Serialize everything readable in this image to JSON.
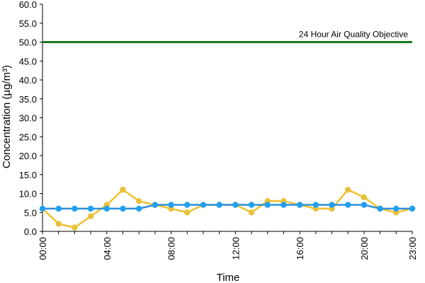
{
  "chart_data": {
    "type": "line",
    "title": "",
    "xlabel": "Time",
    "ylabel": "Concentration (µg/m³)",
    "ylim": [
      0,
      60
    ],
    "yticks": [
      "0.0",
      "5.0",
      "10.0",
      "15.0",
      "20.0",
      "25.0",
      "30.0",
      "35.0",
      "40.0",
      "45.0",
      "50.0",
      "55.0",
      "60.0"
    ],
    "x": [
      "00:00",
      "01:00",
      "02:00",
      "03:00",
      "04:00",
      "05:00",
      "06:00",
      "07:00",
      "08:00",
      "09:00",
      "10:00",
      "11:00",
      "12:00",
      "13:00",
      "14:00",
      "15:00",
      "16:00",
      "17:00",
      "18:00",
      "19:00",
      "20:00",
      "21:00",
      "22:00",
      "23:00"
    ],
    "xtick_labels": [
      "00:00",
      "04:00",
      "08:00",
      "12:00",
      "16:00",
      "20:00",
      "23:00"
    ],
    "grid": false,
    "series": [
      {
        "color": "#f0c030",
        "marker_color": "#e8c23a",
        "values": [
          6,
          2,
          1,
          4,
          7,
          11,
          8,
          7,
          6,
          5,
          7,
          7,
          7,
          5,
          8,
          8,
          7,
          6,
          6,
          11,
          9,
          6,
          5,
          6
        ]
      },
      {
        "color": "#2f8fd8",
        "marker_color": "#1fa0f0",
        "values": [
          6,
          6,
          6,
          6,
          6,
          6,
          6,
          7,
          7,
          7,
          7,
          7,
          7,
          7,
          7,
          7,
          7,
          7,
          7,
          7,
          7,
          6,
          6,
          6
        ]
      }
    ],
    "reference_line": {
      "label": "24 Hour Air Quality Objective",
      "value": 50,
      "color": "#1a7a1a"
    }
  }
}
